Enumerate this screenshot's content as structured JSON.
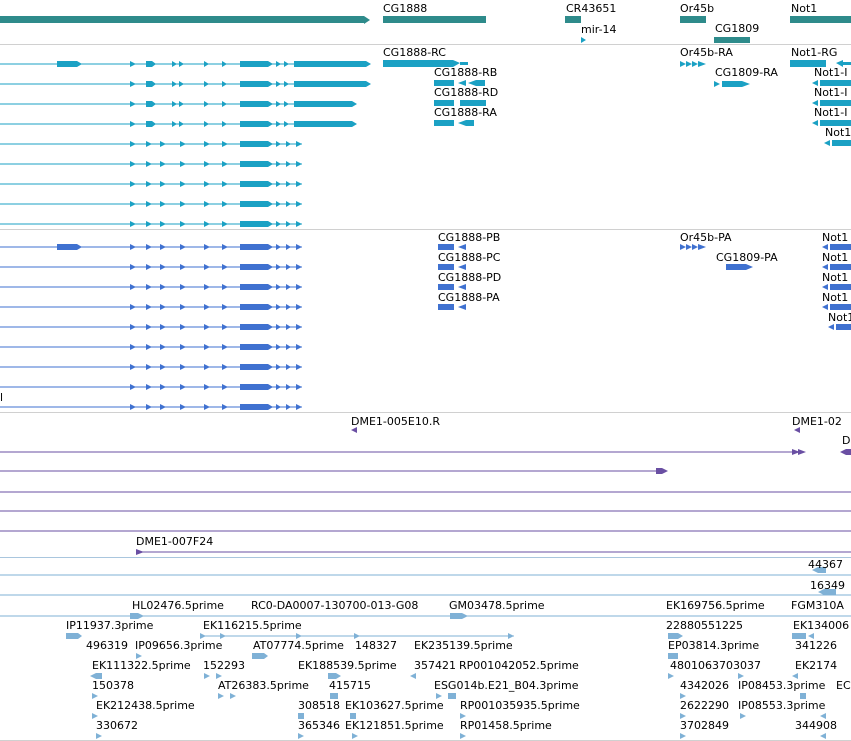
{
  "colors": {
    "gene": "#2e8b8b",
    "transcript": "#1ba1c4",
    "protein": "#3f71d0",
    "cdna": "#6a4fa3",
    "est": "#7fb1d6"
  },
  "genes": [
    "CG1888",
    "CR43651",
    "mir-14",
    "Or45b",
    "CG1809",
    "Not1"
  ],
  "transcripts": [
    "CG1888-RC",
    "CG1888-RB",
    "CG1888-RD",
    "CG1888-RA",
    "Or45b-RA",
    "CG1809-RA",
    "Not1-RG",
    "Not1-I",
    "Not1-I",
    "Not1-I",
    "Not1"
  ],
  "proteins": [
    "CG1888-PB",
    "CG1888-PC",
    "CG1888-PD",
    "CG1888-PA",
    "Or45b-PA",
    "CG1809-PA",
    "Not1",
    "Not1",
    "Not1",
    "Not1",
    "Not1",
    "l"
  ],
  "cdna": [
    "DME1-005E10.R",
    "DME1-02",
    "D",
    "DME1-007F24"
  ],
  "ests": [
    "44367",
    "16349",
    "HL02476.5prime",
    "RC0-DA0007-130700-013-G08",
    "GM03478.5prime",
    "EK169756.5prime",
    "FGM310A",
    "IP11937.3prime",
    "EK116215.5prime",
    "22880551225",
    "EK134006",
    "496319",
    "IP09656.3prime",
    "AT07774.5prime",
    "148327",
    "EK235139.5prime",
    "EP03814.3prime",
    "341226",
    "EK111322.5prime",
    "152293",
    "EK188539.5prime",
    "357421",
    "RP001042052.5prime",
    "4801063703037",
    "EK2174",
    "150378",
    "AT26383.5prime",
    "415715",
    "ESG014b.E21_B04.3prime",
    "4342026",
    "IP08453.3prime",
    "EC",
    "EK212438.5prime",
    "308518",
    "EK103627.5prime",
    "RP001035935.5prime",
    "2622290",
    "IP08553.3prime",
    "330672",
    "365346",
    "EK121851.5prime",
    "RP01458.5prime",
    "3702849",
    "344908"
  ]
}
